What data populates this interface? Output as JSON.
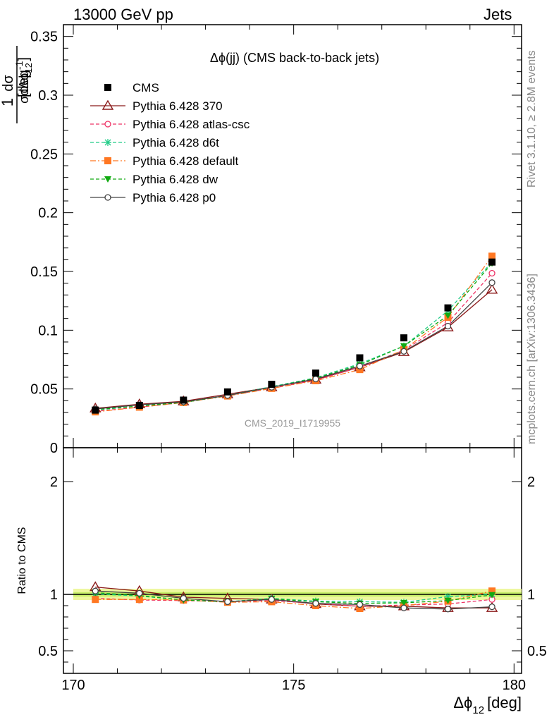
{
  "header": {
    "left": "13000 GeV pp",
    "right": "Jets"
  },
  "side_labels": {
    "rivet": "Rivet 3.1.10, ≥ 2.8M events",
    "mcplots": "mcplots.cern.ch [arXiv:1306.3436]"
  },
  "chart_data": {
    "type": "scatter",
    "title": "Δϕ(jj) (CMS back-to-back jets)",
    "watermark": "CMS_2019_I1719955",
    "xlabel": "Δϕ",
    "xlabel_sub": "12",
    "xlabel_unit": "[deg]",
    "ylabel_prefix": "1",
    "ylabel_num": "dσ",
    "ylabel_den": "σdΔϕ",
    "ylabel_den_sub": "12",
    "ylabel_unit": "[deg",
    "ylabel_unit_sup": "-1",
    "ylabel_unit_close": "]",
    "ratio_ylabel": "Ratio to CMS",
    "xlim": [
      170,
      180
    ],
    "ylim": [
      0,
      0.36
    ],
    "ratio_ylim": [
      0.3,
      2.3
    ],
    "x_ticks": [
      170,
      175,
      180
    ],
    "x_tick_labels": [
      "170",
      "175",
      "180"
    ],
    "y_ticks": [
      0,
      0.05,
      0.1,
      0.15,
      0.2,
      0.25,
      0.3,
      0.35
    ],
    "y_tick_labels": [
      "0",
      "0.05",
      "0.1",
      "0.15",
      "0.2",
      "0.25",
      "0.3",
      "0.35"
    ],
    "ratio_ticks": [
      0.5,
      1,
      2
    ],
    "ratio_tick_labels": [
      "0.5",
      "1",
      "2"
    ],
    "x": [
      170.5,
      171.5,
      172.5,
      173.5,
      174.5,
      175.5,
      176.5,
      177.5,
      178.5,
      179.5
    ],
    "series": [
      {
        "name": "CMS",
        "color": "#000000",
        "marker": "square",
        "line": "none",
        "values": [
          0.032,
          0.036,
          0.0405,
          0.0475,
          0.054,
          0.0635,
          0.0765,
          0.0935,
          0.119,
          0.158
        ]
      },
      {
        "name": "Pythia 6.428 370",
        "color": "#8b1a1a",
        "marker": "triangle-open",
        "line": "solid",
        "values": [
          0.0335,
          0.037,
          0.0395,
          0.0455,
          0.0515,
          0.058,
          0.0685,
          0.0815,
          0.1025,
          0.1345
        ]
      },
      {
        "name": "Pythia 6.428 atlas-csc",
        "color": "#ee3366",
        "marker": "circle-open",
        "line": "dashed",
        "values": [
          0.031,
          0.0345,
          0.0385,
          0.0445,
          0.0505,
          0.0575,
          0.0685,
          0.083,
          0.1065,
          0.1485
        ]
      },
      {
        "name": "Pythia 6.428 d6t",
        "color": "#22cc88",
        "marker": "star",
        "line": "dashed",
        "values": [
          0.032,
          0.0355,
          0.0385,
          0.0445,
          0.052,
          0.0595,
          0.0715,
          0.0865,
          0.1165,
          0.158
        ]
      },
      {
        "name": "Pythia 6.428 default",
        "color": "#ff7722",
        "marker": "square",
        "line": "dashdot",
        "values": [
          0.0305,
          0.0345,
          0.0385,
          0.044,
          0.0505,
          0.057,
          0.0665,
          0.0835,
          0.111,
          0.163
        ]
      },
      {
        "name": "Pythia 6.428 dw",
        "color": "#11aa11",
        "marker": "triangle-down",
        "line": "dashed",
        "values": [
          0.0325,
          0.0355,
          0.0385,
          0.0445,
          0.0515,
          0.059,
          0.0705,
          0.0865,
          0.1125,
          0.157
        ]
      },
      {
        "name": "Pythia 6.428 p0",
        "color": "#444444",
        "marker": "circle-open",
        "line": "solid",
        "values": [
          0.033,
          0.0365,
          0.039,
          0.0445,
          0.0515,
          0.0585,
          0.0695,
          0.082,
          0.1035,
          0.1405
        ]
      }
    ],
    "ratio_series": [
      {
        "name": "Pythia 6.428 370",
        "values": [
          1.065,
          1.03,
          0.975,
          0.965,
          0.955,
          0.915,
          0.895,
          0.895,
          0.88,
          0.88
        ]
      },
      {
        "name": "Pythia 6.428 atlas-csc",
        "values": [
          0.965,
          0.95,
          0.945,
          0.935,
          0.945,
          0.92,
          0.895,
          0.905,
          0.915,
          0.955
        ]
      },
      {
        "name": "Pythia 6.428 d6t",
        "values": [
          1.005,
          0.985,
          0.95,
          0.935,
          0.965,
          0.94,
          0.935,
          0.93,
          0.98,
          1.0
        ]
      },
      {
        "name": "Pythia 6.428 default",
        "values": [
          0.955,
          0.955,
          0.95,
          0.93,
          0.935,
          0.9,
          0.875,
          0.9,
          0.94,
          1.03
        ]
      },
      {
        "name": "Pythia 6.428 dw",
        "values": [
          1.015,
          0.99,
          0.95,
          0.935,
          0.96,
          0.935,
          0.92,
          0.925,
          0.945,
          0.995
        ]
      },
      {
        "name": "Pythia 6.428 p0",
        "values": [
          1.03,
          1.01,
          0.965,
          0.935,
          0.955,
          0.92,
          0.91,
          0.88,
          0.87,
          0.89
        ]
      }
    ],
    "ratio_band": [
      0.98,
      1.02
    ],
    "grid": false,
    "legend_placement": "top-left"
  }
}
